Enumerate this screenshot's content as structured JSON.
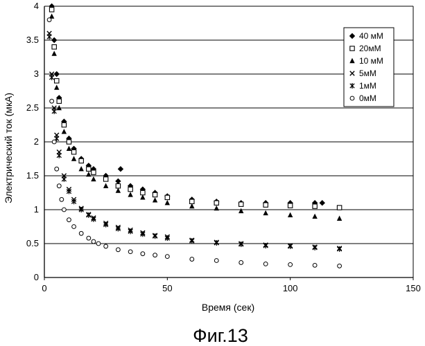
{
  "chart_data": {
    "type": "scatter",
    "caption": "Фиг.13",
    "xlabel": "Время (сек)",
    "ylabel": "Электрический ток (мкА)",
    "xlim": [
      0,
      150
    ],
    "ylim": [
      0,
      4
    ],
    "xticks": [
      "0",
      "50",
      "100",
      "150"
    ],
    "yticks": [
      "0",
      "0.5",
      "1",
      "1.5",
      "2",
      "2.5",
      "3",
      "3.5",
      "4"
    ],
    "grid": "horizontal",
    "legend_position": "top-right",
    "series": [
      {
        "name": "40 мМ",
        "marker": "diamond-filled",
        "x": [
          3,
          4,
          5,
          6,
          8,
          10,
          12,
          15,
          18,
          20,
          25,
          30,
          31,
          35,
          40,
          45,
          50,
          60,
          70,
          80,
          90,
          100,
          110,
          113
        ],
        "y": [
          4.0,
          3.5,
          3.0,
          2.65,
          2.3,
          2.05,
          1.9,
          1.75,
          1.65,
          1.6,
          1.5,
          1.42,
          1.6,
          1.35,
          1.3,
          1.25,
          1.2,
          1.15,
          1.12,
          1.1,
          1.1,
          1.1,
          1.1,
          1.1
        ]
      },
      {
        "name": "20мМ",
        "marker": "square-open",
        "x": [
          3,
          4,
          5,
          6,
          8,
          10,
          12,
          15,
          18,
          20,
          25,
          30,
          35,
          40,
          45,
          50,
          60,
          70,
          80,
          90,
          100,
          110,
          120
        ],
        "y": [
          3.95,
          3.4,
          2.9,
          2.6,
          2.25,
          2.0,
          1.85,
          1.72,
          1.6,
          1.55,
          1.45,
          1.35,
          1.3,
          1.25,
          1.22,
          1.18,
          1.12,
          1.1,
          1.08,
          1.07,
          1.06,
          1.05,
          1.03
        ]
      },
      {
        "name": "10 мМ",
        "marker": "triangle-filled",
        "x": [
          3,
          4,
          5,
          6,
          8,
          10,
          12,
          15,
          18,
          20,
          25,
          30,
          35,
          40,
          45,
          50,
          60,
          70,
          80,
          90,
          100,
          110,
          120
        ],
        "y": [
          3.85,
          3.3,
          2.8,
          2.5,
          2.15,
          1.9,
          1.75,
          1.6,
          1.52,
          1.45,
          1.35,
          1.28,
          1.22,
          1.18,
          1.14,
          1.1,
          1.05,
          1.02,
          0.98,
          0.95,
          0.92,
          0.9,
          0.87
        ]
      },
      {
        "name": "5мМ",
        "marker": "cross",
        "x": [
          2,
          3,
          4,
          5,
          6,
          8,
          10,
          12,
          15,
          18,
          20,
          25,
          30,
          35,
          40,
          45,
          50,
          60,
          70,
          80,
          90,
          100,
          110,
          120
        ],
        "y": [
          3.6,
          3.0,
          2.5,
          2.1,
          1.85,
          1.5,
          1.3,
          1.15,
          1.02,
          0.93,
          0.88,
          0.8,
          0.74,
          0.7,
          0.66,
          0.62,
          0.6,
          0.55,
          0.52,
          0.5,
          0.48,
          0.47,
          0.45,
          0.43
        ]
      },
      {
        "name": "1мМ",
        "marker": "asterisk",
        "x": [
          2,
          3,
          4,
          5,
          6,
          8,
          10,
          12,
          15,
          18,
          20,
          25,
          30,
          35,
          40,
          45,
          50,
          60,
          70,
          80,
          90,
          100,
          110,
          120
        ],
        "y": [
          3.55,
          2.95,
          2.45,
          2.05,
          1.8,
          1.45,
          1.27,
          1.12,
          1.0,
          0.92,
          0.86,
          0.78,
          0.72,
          0.68,
          0.64,
          0.61,
          0.58,
          0.54,
          0.51,
          0.49,
          0.47,
          0.46,
          0.44,
          0.42
        ]
      },
      {
        "name": "0мМ",
        "marker": "circle-open",
        "x": [
          2,
          3,
          4,
          5,
          6,
          7,
          8,
          10,
          12,
          15,
          18,
          20,
          22,
          25,
          30,
          35,
          40,
          45,
          50,
          60,
          70,
          80,
          90,
          100,
          110,
          120
        ],
        "y": [
          3.8,
          2.6,
          2.0,
          1.6,
          1.35,
          1.15,
          1.0,
          0.85,
          0.75,
          0.65,
          0.58,
          0.53,
          0.5,
          0.46,
          0.41,
          0.38,
          0.35,
          0.33,
          0.31,
          0.27,
          0.25,
          0.22,
          0.2,
          0.19,
          0.18,
          0.17
        ]
      }
    ]
  }
}
